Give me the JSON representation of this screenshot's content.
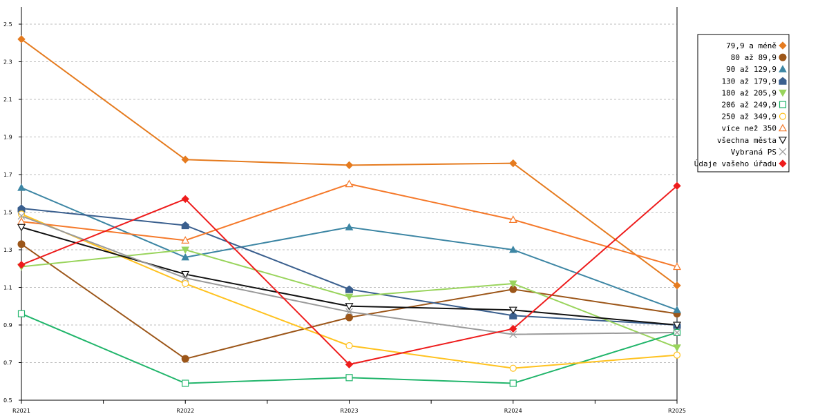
{
  "chart_data": {
    "type": "line",
    "title": "",
    "xlabel": "",
    "ylabel": "",
    "categories": [
      "R2021",
      "R2022",
      "R2023",
      "R2024",
      "R2025"
    ],
    "ylim": [
      0.5,
      2.6
    ],
    "yticks": [
      0.5,
      0.7,
      0.9,
      1.1,
      1.3,
      1.5,
      1.7,
      1.9,
      2.1,
      2.3,
      2.5
    ],
    "ytick_labels": [
      "0.5",
      "0.7",
      "0.9",
      "1.1",
      "1.3",
      "1.5",
      "1.7",
      "1.9",
      "2.1",
      "2.3",
      "2.5"
    ],
    "grid": "horizontal dashed",
    "legend_position": "right",
    "series": [
      {
        "name": "79,9 a méně",
        "color": "#e57b1f",
        "marker": "diamond-filled",
        "values": [
          2.42,
          1.78,
          1.75,
          1.76,
          1.11
        ]
      },
      {
        "name": "80 až 89,9",
        "color": "#9c5619",
        "marker": "circle-filled",
        "values": [
          1.33,
          0.72,
          0.94,
          1.09,
          0.96
        ]
      },
      {
        "name": "90 až 129,9",
        "color": "#3d86a4",
        "marker": "triangle-up-filled",
        "values": [
          1.63,
          1.26,
          1.42,
          1.3,
          0.98
        ]
      },
      {
        "name": "130 až 179,9",
        "color": "#3a5f8e",
        "marker": "pentagon-filled",
        "values": [
          1.52,
          1.43,
          1.09,
          0.95,
          0.9
        ]
      },
      {
        "name": "180 až 205,9",
        "color": "#99d45c",
        "marker": "triangle-down-filled",
        "values": [
          1.21,
          1.3,
          1.05,
          1.12,
          0.78
        ]
      },
      {
        "name": "206 až 249,9",
        "color": "#21b56b",
        "marker": "square-open",
        "values": [
          0.96,
          0.59,
          0.62,
          0.59,
          0.86
        ]
      },
      {
        "name": "250 až 349,9",
        "color": "#ffc21f",
        "marker": "circle-open",
        "values": [
          1.49,
          1.12,
          0.79,
          0.67,
          0.74
        ]
      },
      {
        "name": "více než 350",
        "color": "#f5792a",
        "marker": "triangle-up-open",
        "values": [
          1.45,
          1.35,
          1.65,
          1.46,
          1.21
        ]
      },
      {
        "name": "všechna města",
        "color": "#111111",
        "marker": "triangle-down-open",
        "values": [
          1.42,
          1.17,
          1.0,
          0.98,
          0.9
        ]
      },
      {
        "name": "Vybraná PS",
        "color": "#9a9a9a",
        "marker": "x",
        "values": [
          1.48,
          1.15,
          0.97,
          0.85,
          0.86
        ]
      },
      {
        "name": "Údaje vašeho úřadu",
        "color": "#ee1c1c",
        "marker": "diamond-filled",
        "values": [
          1.22,
          1.57,
          0.69,
          0.88,
          1.64
        ]
      }
    ]
  }
}
